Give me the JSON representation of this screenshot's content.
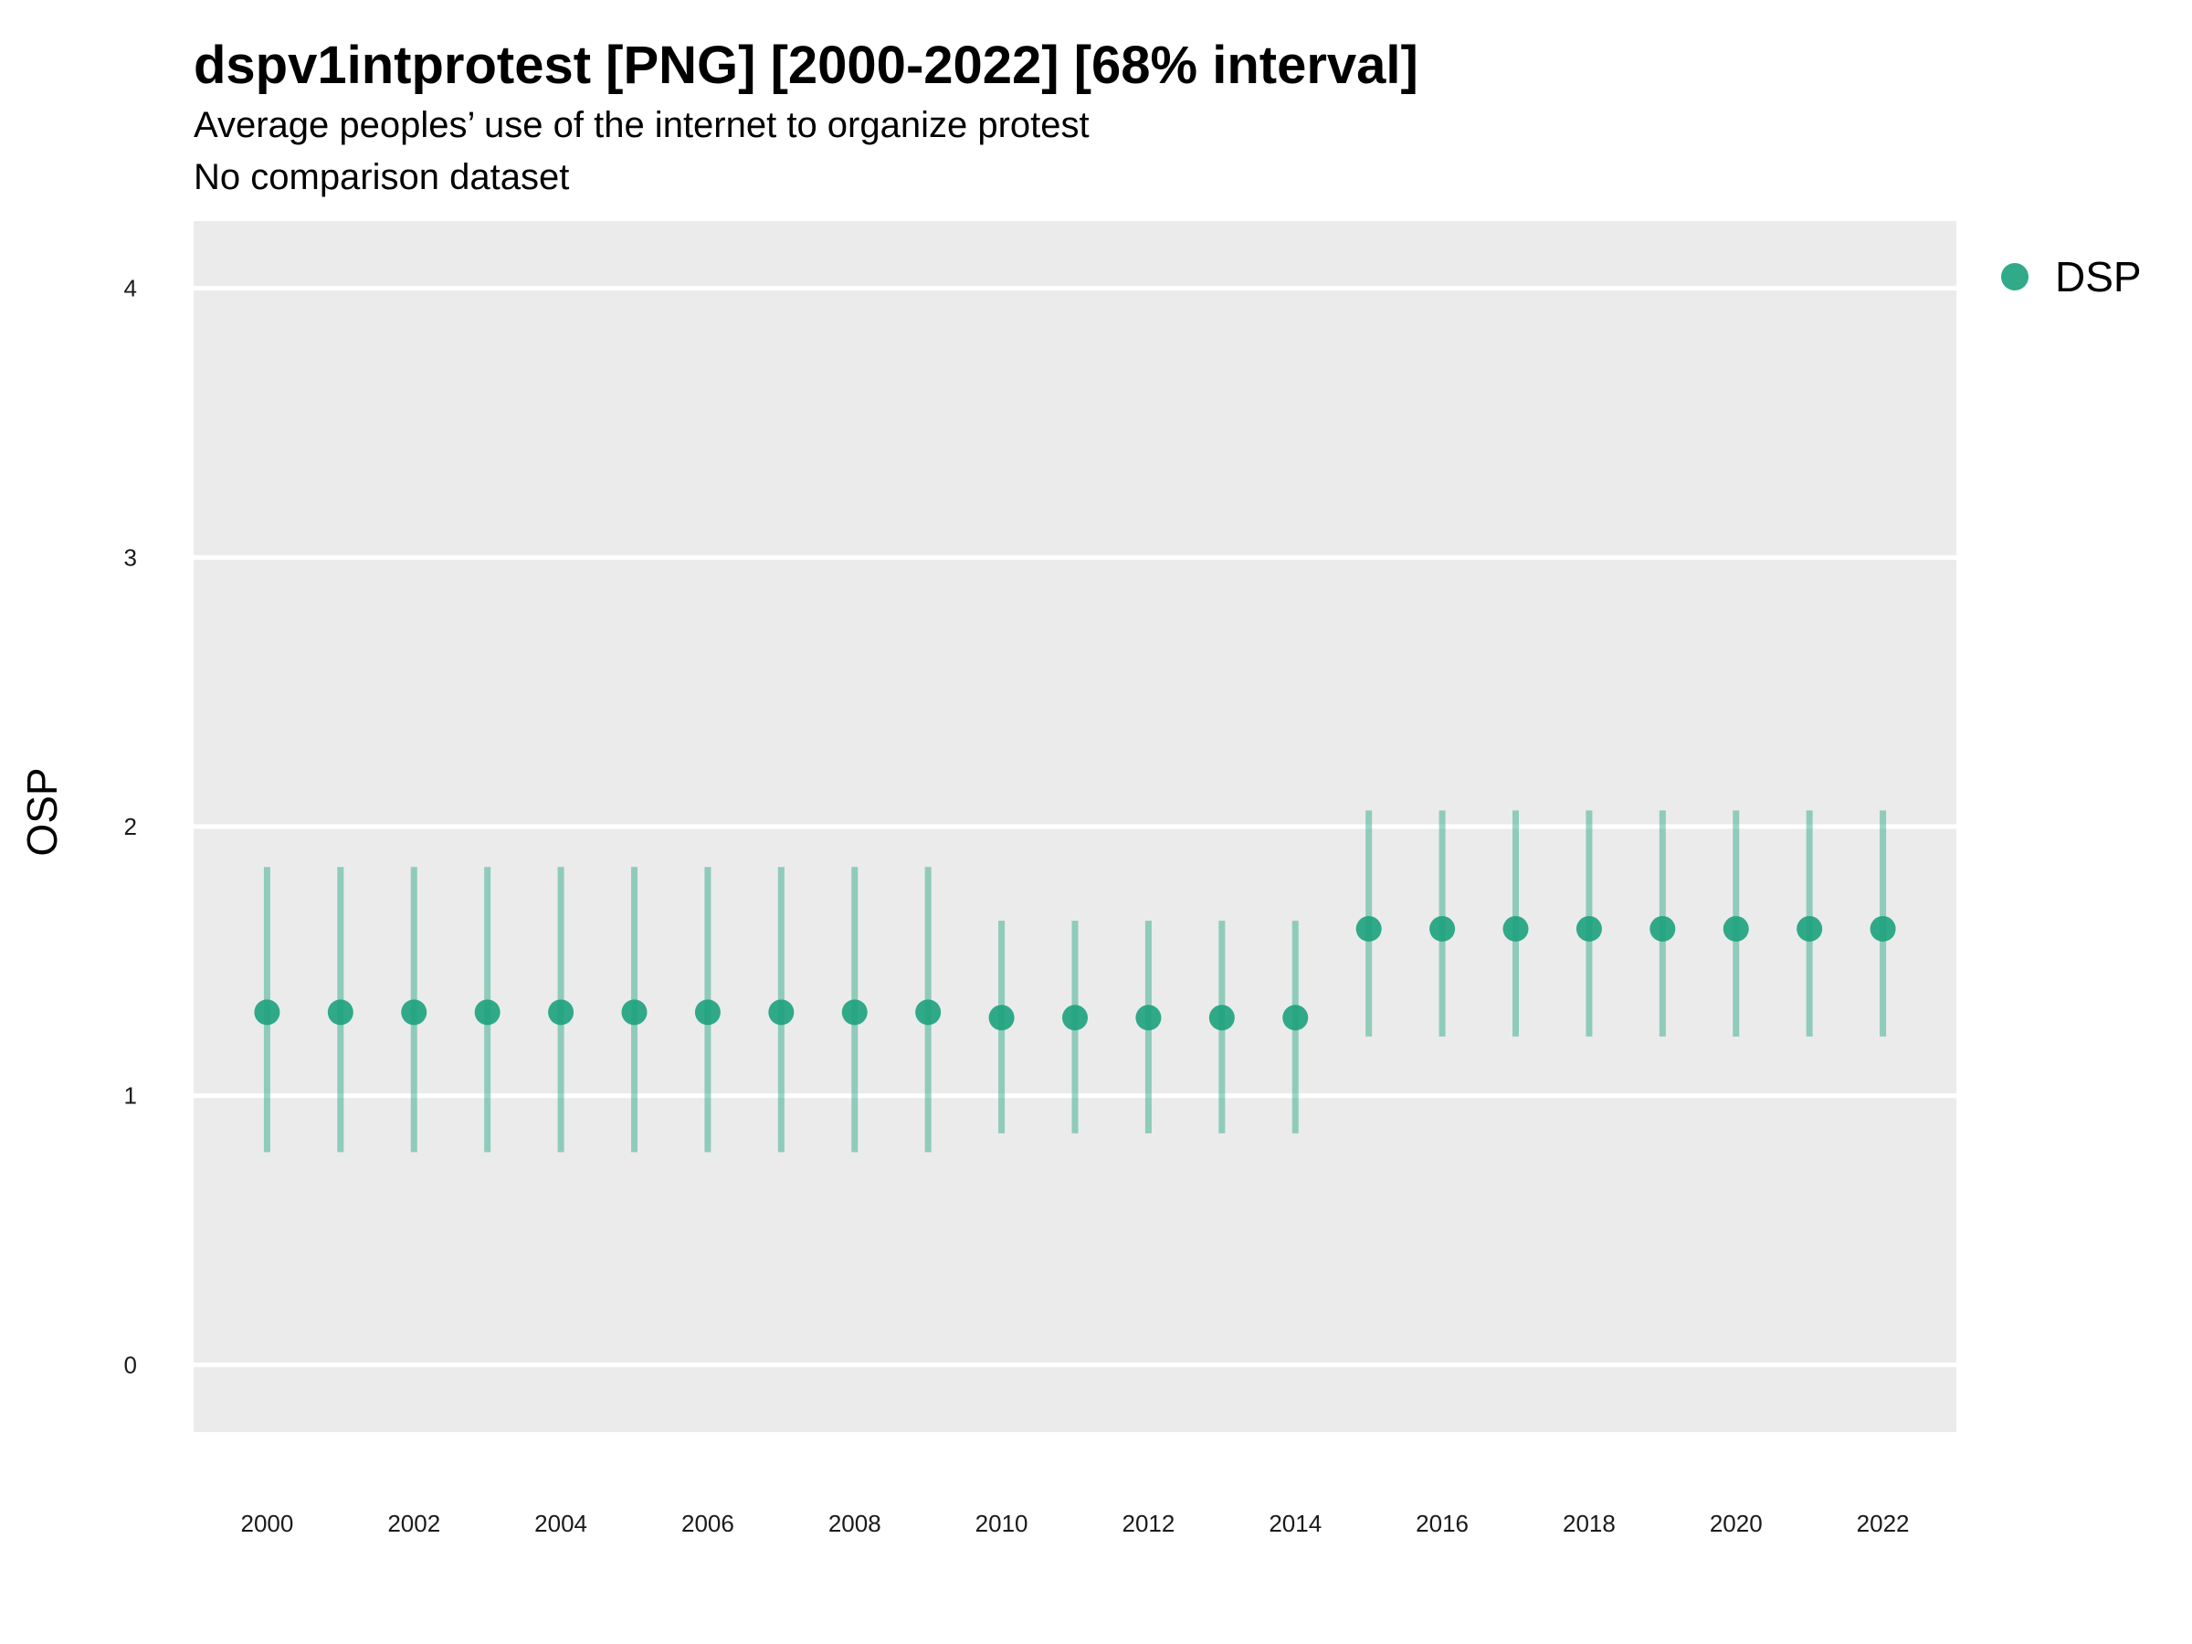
{
  "chart_data": {
    "type": "scatter",
    "title": "dspv1intprotest [PNG] [2000-2022] [68% interval]",
    "subtitle": "Average peoples’ use of the internet to organize protest",
    "caption": "No comparison dataset",
    "ylabel": "OSP",
    "xlabel": "",
    "ylim": [
      -0.25,
      4.25
    ],
    "xlim": [
      1999,
      2023
    ],
    "yticks": [
      0,
      1,
      2,
      3,
      4
    ],
    "xticks": [
      2000,
      2002,
      2004,
      2006,
      2008,
      2010,
      2012,
      2014,
      2016,
      2018,
      2020,
      2022
    ],
    "grid": "horizontal",
    "legend": "top-right",
    "color": "#1fa37f",
    "series": [
      {
        "name": "DSP",
        "x": [
          2000,
          2001,
          2002,
          2003,
          2004,
          2005,
          2006,
          2007,
          2008,
          2009,
          2010,
          2011,
          2012,
          2013,
          2014,
          2015,
          2016,
          2017,
          2018,
          2019,
          2020,
          2021,
          2022
        ],
        "y": [
          1.31,
          1.31,
          1.31,
          1.31,
          1.31,
          1.31,
          1.31,
          1.31,
          1.31,
          1.31,
          1.29,
          1.29,
          1.29,
          1.29,
          1.29,
          1.62,
          1.62,
          1.62,
          1.62,
          1.62,
          1.62,
          1.62,
          1.62
        ],
        "lower": [
          0.79,
          0.79,
          0.79,
          0.79,
          0.79,
          0.79,
          0.79,
          0.79,
          0.79,
          0.79,
          0.86,
          0.86,
          0.86,
          0.86,
          0.86,
          1.22,
          1.22,
          1.22,
          1.22,
          1.22,
          1.22,
          1.22,
          1.22
        ],
        "upper": [
          1.85,
          1.85,
          1.85,
          1.85,
          1.85,
          1.85,
          1.85,
          1.85,
          1.85,
          1.85,
          1.65,
          1.65,
          1.65,
          1.65,
          1.65,
          2.06,
          2.06,
          2.06,
          2.06,
          2.06,
          2.06,
          2.06,
          2.06
        ]
      }
    ]
  }
}
